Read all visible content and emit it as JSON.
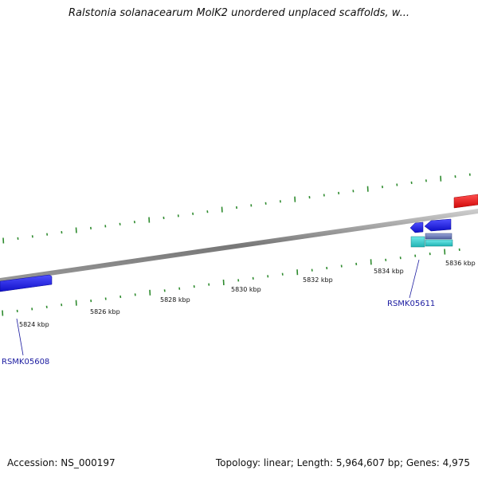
{
  "title": "Ralstonia solanacearum MolK2 unordered unplaced scaffolds, w...",
  "footer": {
    "accession": "Accession: NS_000197",
    "summary": "Topology: linear; Length: 5,964,607 bp; Genes: 4,975"
  },
  "colors": {
    "backbone": "#7f7f7f",
    "tick": "#2e8b2e",
    "gene_forward": "#1c1ce0",
    "gene_other": "#e01010",
    "gene_rna": "#28c8c8",
    "gene_pseudo": "#6a78b8",
    "label": "#1a1aa0"
  },
  "ruler": {
    "unit": "kbp",
    "ticks": [
      {
        "pos_kbp": 5824,
        "label": "5824 kbp"
      },
      {
        "pos_kbp": 5826,
        "label": "5826 kbp"
      },
      {
        "pos_kbp": 5828,
        "label": "5828 kbp"
      },
      {
        "pos_kbp": 5830,
        "label": "5830 kbp"
      },
      {
        "pos_kbp": 5832,
        "label": "5832 kbp"
      },
      {
        "pos_kbp": 5834,
        "label": "5834 kbp"
      },
      {
        "pos_kbp": 5836,
        "label": "5836 kbp"
      }
    ]
  },
  "genes": [
    {
      "id": "RSMK05608",
      "label": "RSMK05608",
      "type": "forward"
    },
    {
      "id": "RSMK05611",
      "label": "RSMK05611",
      "type": "forward"
    }
  ]
}
